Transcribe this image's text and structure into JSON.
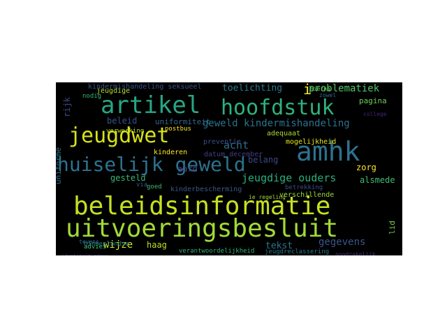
{
  "wordcloud": {
    "background": "#000000",
    "words": [
      {
        "text": "beleidsinformatie",
        "color": "#c5e021"
      },
      {
        "text": "uitvoeringsbesluit",
        "color": "#a2da37"
      },
      {
        "text": "huiselijk geweld",
        "color": "#2c728e"
      },
      {
        "text": "amhk",
        "color": "#2d718e"
      },
      {
        "text": "artikel",
        "color": "#26a784"
      },
      {
        "text": "hoofdstuk",
        "color": "#2db27d"
      },
      {
        "text": "jeugdwet",
        "color": "#d8e219"
      },
      {
        "text": "problematiek",
        "color": "#52c569"
      },
      {
        "text": "geweld kindermishandeling",
        "color": "#2c728e"
      },
      {
        "text": "jeugdige ouders",
        "color": "#2ab07f"
      },
      {
        "text": "kindermishandeling seksueel",
        "color": "#3b528b"
      },
      {
        "text": "toelichting",
        "color": "#2a788e"
      },
      {
        "text": "wijze",
        "color": "#dde318"
      },
      {
        "text": "haag",
        "color": "#bddf26"
      },
      {
        "text": "gegevens",
        "color": "#39558c"
      },
      {
        "text": "tekst",
        "color": "#2a768e"
      },
      {
        "text": "zorg",
        "color": "#fde725"
      },
      {
        "text": "alsmede",
        "color": "#3fbc73"
      },
      {
        "text": "belang",
        "color": "#3e4989"
      },
      {
        "text": "pagina",
        "color": "#6ece58"
      },
      {
        "text": "acht",
        "color": "#2e6f8e"
      },
      {
        "text": "aard",
        "color": "#3e4a89"
      },
      {
        "text": "gesteld",
        "color": "#35b779"
      },
      {
        "text": "kinderbescherming",
        "color": "#38588c"
      },
      {
        "text": "verschillende",
        "color": "#a0da39"
      },
      {
        "text": "uniformiteit",
        "color": "#31688e"
      },
      {
        "text": "beleid",
        "color": "#3b528b"
      },
      {
        "text": "preventie",
        "color": "#3e4c8a"
      },
      {
        "text": "datum december",
        "color": "#433e85"
      },
      {
        "text": "adequaat",
        "color": "#addc30"
      },
      {
        "text": "mogelijkheid",
        "color": "#e5e419"
      },
      {
        "text": "verwerking",
        "color": "#c2df23"
      },
      {
        "text": "nodig",
        "color": "#35b779"
      },
      {
        "text": "jeugdige",
        "color": "#b5de2b"
      },
      {
        "text": "kinderen",
        "color": "#fde725"
      },
      {
        "text": "verantwoordelijkheid",
        "color": "#2fb47c"
      },
      {
        "text": "jeugdreclassering",
        "color": "#287c8e"
      },
      {
        "text": "advies",
        "color": "#46c06f"
      },
      {
        "text": "goed",
        "color": "#3fbc73"
      },
      {
        "text": "via",
        "color": "#3b528b"
      },
      {
        "text": "postbus",
        "color": "#fde725"
      },
      {
        "text": "rijk",
        "color": "#3e4a89"
      },
      {
        "text": "uniforme",
        "color": "#2d708e"
      },
      {
        "text": "lid",
        "color": "#7ad151"
      },
      {
        "text": "binnenlandse",
        "color": "#238a8d"
      },
      {
        "text": "betrekking",
        "color": "#3d4d8a"
      },
      {
        "text": "noodzakelijk",
        "color": "#46337e"
      },
      {
        "text": "tevens",
        "color": "#2c728e"
      },
      {
        "text": "identiteit adres",
        "color": "#472f7d"
      },
      {
        "text": "ie regeling",
        "color": "#a5db36"
      },
      {
        "text": "zowel",
        "color": "#31688e"
      },
      {
        "text": "hierna",
        "color": "#6ccd5a"
      },
      {
        "text": "college",
        "color": "#482475"
      },
      {
        "text": "i",
        "color": "#fde725"
      }
    ]
  }
}
